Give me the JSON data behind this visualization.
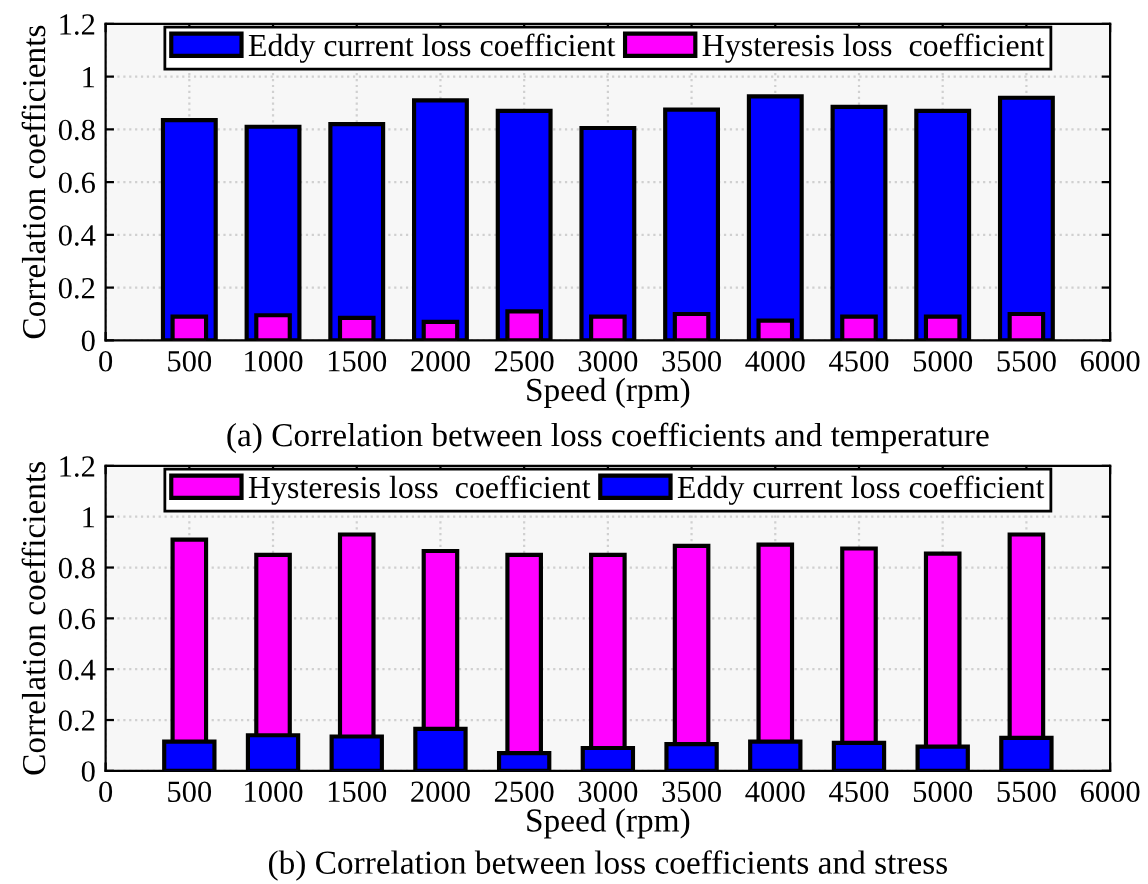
{
  "chart_data": [
    {
      "type": "bar",
      "xlabel": "Speed (rpm)",
      "ylabel": "Correlation coefficients",
      "annotations": [
        "(a) Correlation between loss coefficients and temperature"
      ],
      "x": [
        500,
        1000,
        1500,
        2000,
        2500,
        3000,
        3500,
        4000,
        4500,
        5000,
        5500
      ],
      "series": [
        {
          "name": "Eddy current loss coefficient",
          "color": "#0000ff",
          "values": [
            0.835,
            0.81,
            0.82,
            0.91,
            0.87,
            0.805,
            0.875,
            0.925,
            0.885,
            0.87,
            0.92
          ]
        },
        {
          "name": "Hysteresis loss  coefficient",
          "color": "#ff00ff",
          "values": [
            0.09,
            0.095,
            0.085,
            0.07,
            0.11,
            0.09,
            0.1,
            0.075,
            0.09,
            0.09,
            0.1
          ]
        }
      ],
      "xlim": [
        0,
        6000
      ],
      "xticks": [
        0,
        500,
        1000,
        1500,
        2000,
        2500,
        3000,
        3500,
        4000,
        4500,
        5000,
        5500,
        6000
      ],
      "ylim": [
        0,
        1.2
      ],
      "yticks": [
        0,
        0.2,
        0.4,
        0.6,
        0.8,
        1,
        1.2
      ],
      "grid": true,
      "legend": "top"
    },
    {
      "type": "bar",
      "xlabel": "Speed (rpm)",
      "ylabel": "Correlation coefficients",
      "annotations": [
        "(b) Correlation between loss coefficients and stress"
      ],
      "x": [
        500,
        1000,
        1500,
        2000,
        2500,
        3000,
        3500,
        4000,
        4500,
        5000,
        5500
      ],
      "series": [
        {
          "name": "Hysteresis loss  coefficient",
          "color": "#ff00ff",
          "values": [
            0.91,
            0.85,
            0.93,
            0.865,
            0.85,
            0.85,
            0.885,
            0.89,
            0.875,
            0.855,
            0.93
          ]
        },
        {
          "name": "Eddy current loss coefficient",
          "color": "#0000ff",
          "values": [
            0.115,
            0.14,
            0.135,
            0.165,
            0.07,
            0.09,
            0.105,
            0.115,
            0.11,
            0.095,
            0.13
          ]
        }
      ],
      "xlim": [
        0,
        6000
      ],
      "xticks": [
        0,
        500,
        1000,
        1500,
        2000,
        2500,
        3000,
        3500,
        4000,
        4500,
        5000,
        5500,
        6000
      ],
      "ylim": [
        0,
        1.2
      ],
      "yticks": [
        0,
        0.2,
        0.4,
        0.6,
        0.8,
        1,
        1.2
      ],
      "grid": true,
      "legend": "top"
    }
  ]
}
